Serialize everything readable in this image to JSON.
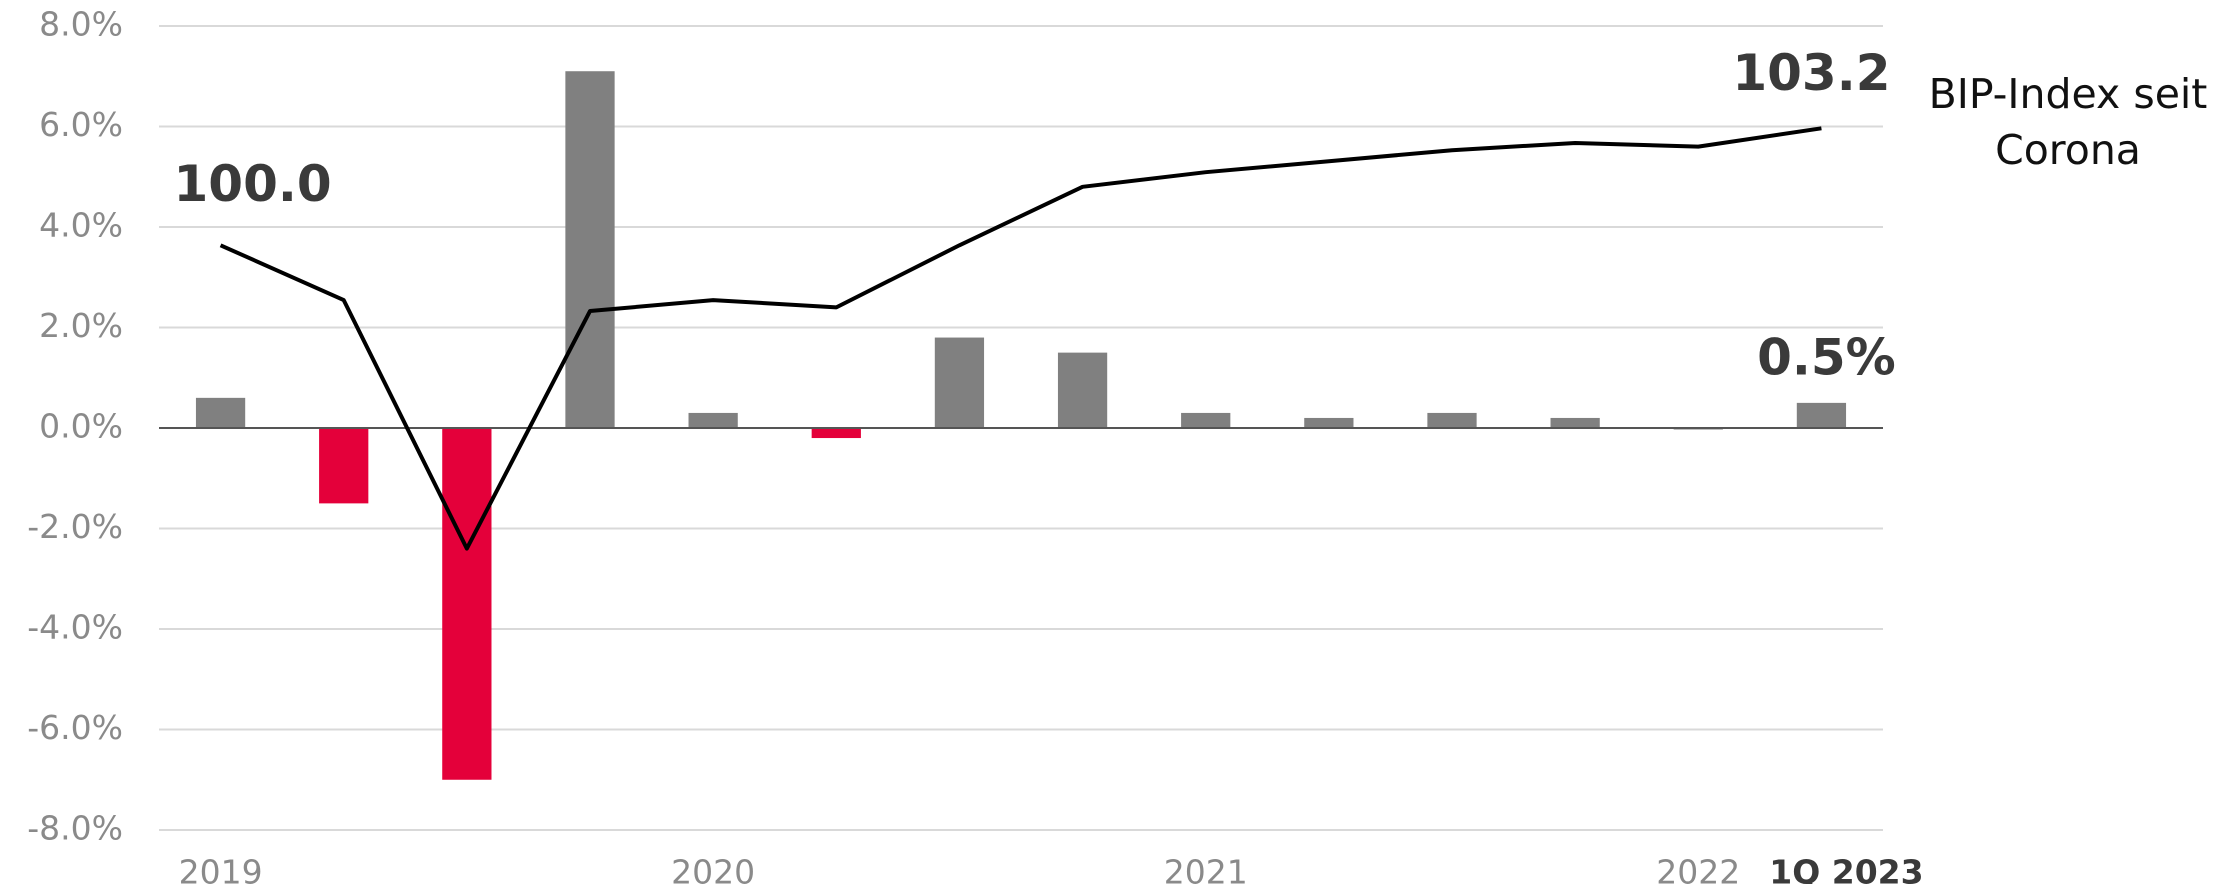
{
  "chart_data": {
    "type": "bar+line",
    "categories": [
      "2019",
      null,
      null,
      null,
      "2020",
      null,
      null,
      null,
      "2021",
      null,
      null,
      null,
      "2022",
      "1Q 2023"
    ],
    "series": [
      {
        "type": "bar",
        "colors": [
          "#808080",
          "#e4003a",
          "#e4003a",
          "#808080",
          "#808080",
          "#e4003a",
          "#808080",
          "#808080",
          "#808080",
          "#808080",
          "#808080",
          "#808080",
          "#808080",
          "#808080"
        ],
        "values": [
          0.6,
          -1.5,
          -7.0,
          7.1,
          0.3,
          -0.2,
          1.8,
          1.5,
          0.3,
          0.2,
          0.3,
          0.2,
          -0.03,
          0.5
        ],
        "value_labels": [
          null,
          null,
          null,
          null,
          null,
          null,
          null,
          null,
          null,
          null,
          null,
          null,
          null,
          "0.5%"
        ]
      },
      {
        "type": "line",
        "name": "BIP-Index seit Corona",
        "color": "#000000",
        "axis": "y2",
        "values": [
          100.0,
          98.5,
          91.7,
          98.2,
          98.5,
          98.3,
          100.0,
          101.6,
          102.0,
          102.3,
          102.6,
          102.8,
          102.7,
          103.2
        ],
        "value_labels": [
          "100.0",
          null,
          null,
          null,
          null,
          null,
          null,
          null,
          null,
          null,
          null,
          null,
          null,
          "103.2"
        ]
      }
    ],
    "ylim": [
      -8,
      8
    ],
    "yticks": [
      {
        "value": -8,
        "label": "-8.0%"
      },
      {
        "value": -6,
        "label": "-6.0%"
      },
      {
        "value": -4,
        "label": "-4.0%"
      },
      {
        "value": -2,
        "label": "-2.0%"
      },
      {
        "value": 0,
        "label": "0.0%"
      },
      {
        "value": 2,
        "label": "2.0%"
      },
      {
        "value": 4,
        "label": "4.0%"
      },
      {
        "value": 6,
        "label": "6.0%"
      },
      {
        "value": 8,
        "label": "8.0%"
      }
    ],
    "y2lim": [
      84,
      106
    ],
    "grid": true
  }
}
